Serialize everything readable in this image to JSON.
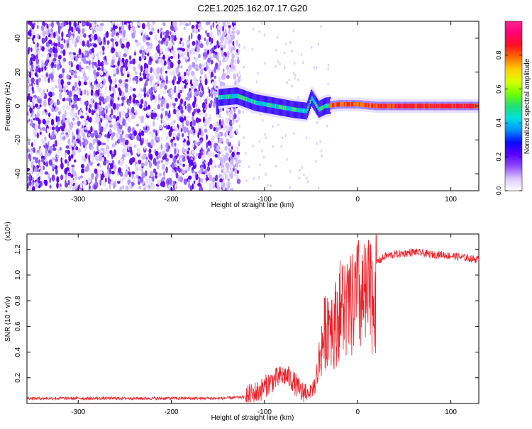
{
  "figure_title": "C2E1.2025.162.07.17.G20",
  "colors": {
    "snr_line": "#e8222a",
    "spectro_fill": "#6a00e8",
    "background": "#ffffff"
  },
  "chart_data": [
    {
      "type": "heatmap",
      "title": "C2E1.2025.162.07.17.G20",
      "xlabel": "Height of straight line (km)",
      "ylabel": "Frequency (Hz)",
      "xlim": [
        -355,
        130
      ],
      "ylim": [
        -50,
        50
      ],
      "x_ticks": [
        -300,
        -200,
        -100,
        0,
        100
      ],
      "y_ticks": [
        -40,
        -20,
        0,
        20,
        40
      ],
      "colorbar": {
        "label": "Normalized spectral amplitude",
        "range": [
          0,
          1
        ],
        "ticks": [
          "0.0",
          "0.2",
          "0.4",
          "0.6",
          "0.8"
        ],
        "colors": [
          "#ffffff",
          "#d9c8ff",
          "#8f4dff",
          "#5a00ff",
          "#0a0aff",
          "#0090ff",
          "#00e0e0",
          "#20e070",
          "#70ff00",
          "#d8ff00",
          "#ffd000",
          "#ff7000",
          "#ff1020",
          "#ff0070",
          "#ff2090"
        ]
      },
      "noise_region": {
        "x_range": [
          -355,
          -135
        ],
        "freq_range": [
          -50,
          50
        ]
      },
      "signal_trace": [
        {
          "x": -150,
          "freq": 5
        },
        {
          "x": -130,
          "freq": 6
        },
        {
          "x": -110,
          "freq": 2
        },
        {
          "x": -90,
          "freq": 0
        },
        {
          "x": -70,
          "freq": -2
        },
        {
          "x": -55,
          "freq": -3
        },
        {
          "x": -50,
          "freq": 5
        },
        {
          "x": -42,
          "freq": -2
        },
        {
          "x": -35,
          "freq": 0
        },
        {
          "x": -20,
          "freq": 1
        },
        {
          "x": 0,
          "freq": 1
        },
        {
          "x": 20,
          "freq": 0
        },
        {
          "x": 60,
          "freq": 0
        },
        {
          "x": 100,
          "freq": 0
        },
        {
          "x": 130,
          "freq": 0
        }
      ]
    },
    {
      "type": "line",
      "xlabel": "Height of straight line (km)",
      "ylabel": "SNR (10 * v/v)",
      "y_multiplier": "(x10⁴)",
      "xlim": [
        -355,
        130
      ],
      "ylim": [
        0,
        1.32
      ],
      "x_ticks": [
        -300,
        -200,
        -100,
        0,
        100
      ],
      "y_ticks": [
        "0.2",
        "0.4",
        "0.6",
        "0.8",
        "1.0",
        "1.2"
      ],
      "series": [
        {
          "x": [
            -355,
            -300,
            -250,
            -200,
            -150,
            -120,
            -105,
            -95,
            -85,
            -78,
            -70,
            -60,
            -50,
            -45,
            -40,
            -35,
            -30,
            -25,
            -20,
            -15,
            -10,
            -5,
            0,
            5,
            10,
            15,
            20,
            25,
            30,
            40,
            50,
            60,
            70,
            80,
            90,
            100,
            110,
            120,
            130
          ],
          "values": [
            0.04,
            0.04,
            0.04,
            0.04,
            0.04,
            0.05,
            0.1,
            0.16,
            0.2,
            0.22,
            0.18,
            0.08,
            0.12,
            0.2,
            0.5,
            0.7,
            0.85,
            0.75,
            0.9,
            0.95,
            0.9,
            0.95,
            1.05,
            1.0,
            1.02,
            1.05,
            1.1,
            1.12,
            1.15,
            1.16,
            1.17,
            1.18,
            1.17,
            1.16,
            1.16,
            1.15,
            1.14,
            1.13,
            1.12
          ]
        }
      ]
    }
  ]
}
